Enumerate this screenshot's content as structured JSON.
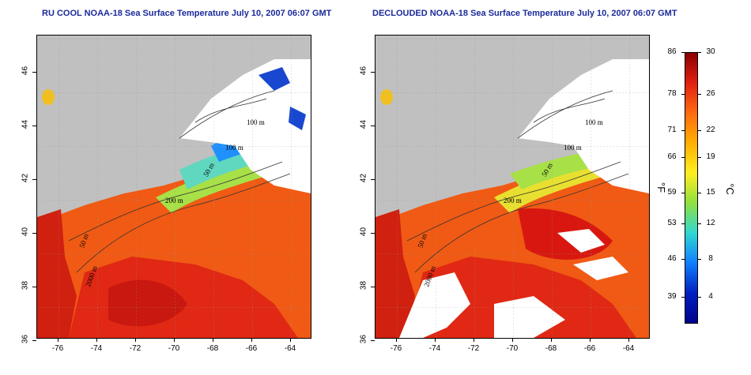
{
  "panels": [
    {
      "id": "left",
      "title": "RU COOL NOAA-18 Sea Surface Temperature July 10, 2007 06:07 GMT"
    },
    {
      "id": "right",
      "title": "DECLOUDED NOAA-18 Sea Surface Temperature July 10, 2007 06:07 GMT"
    }
  ],
  "axes": {
    "lat_ticks": [
      "46",
      "44",
      "42",
      "40",
      "38",
      "36"
    ],
    "lon_ticks": [
      "-76",
      "-74",
      "-72",
      "-70",
      "-68",
      "-66",
      "-64"
    ]
  },
  "contour_labels": [
    "100 m",
    "100 m",
    "50 m",
    "200 m",
    "50 m",
    "2000 m"
  ],
  "colorbar": {
    "fahrenheit_ticks": [
      "86",
      "78",
      "71",
      "66",
      "59",
      "53",
      "46",
      "39"
    ],
    "celsius_ticks": [
      "30",
      "26",
      "22",
      "19",
      "15",
      "12",
      "8",
      "4"
    ],
    "fahrenheit_unit": "°F",
    "celsius_unit": "°C",
    "colors": [
      "#8b0000",
      "#e02010",
      "#ff6a10",
      "#ffb000",
      "#ffee20",
      "#90e040",
      "#30d8d0",
      "#1080ff",
      "#0020c0",
      "#00008b"
    ]
  },
  "colors": {
    "land": "#c0c0c0",
    "title": "#1b2a9a",
    "warm": "#f05010",
    "hot": "#d81010"
  }
}
